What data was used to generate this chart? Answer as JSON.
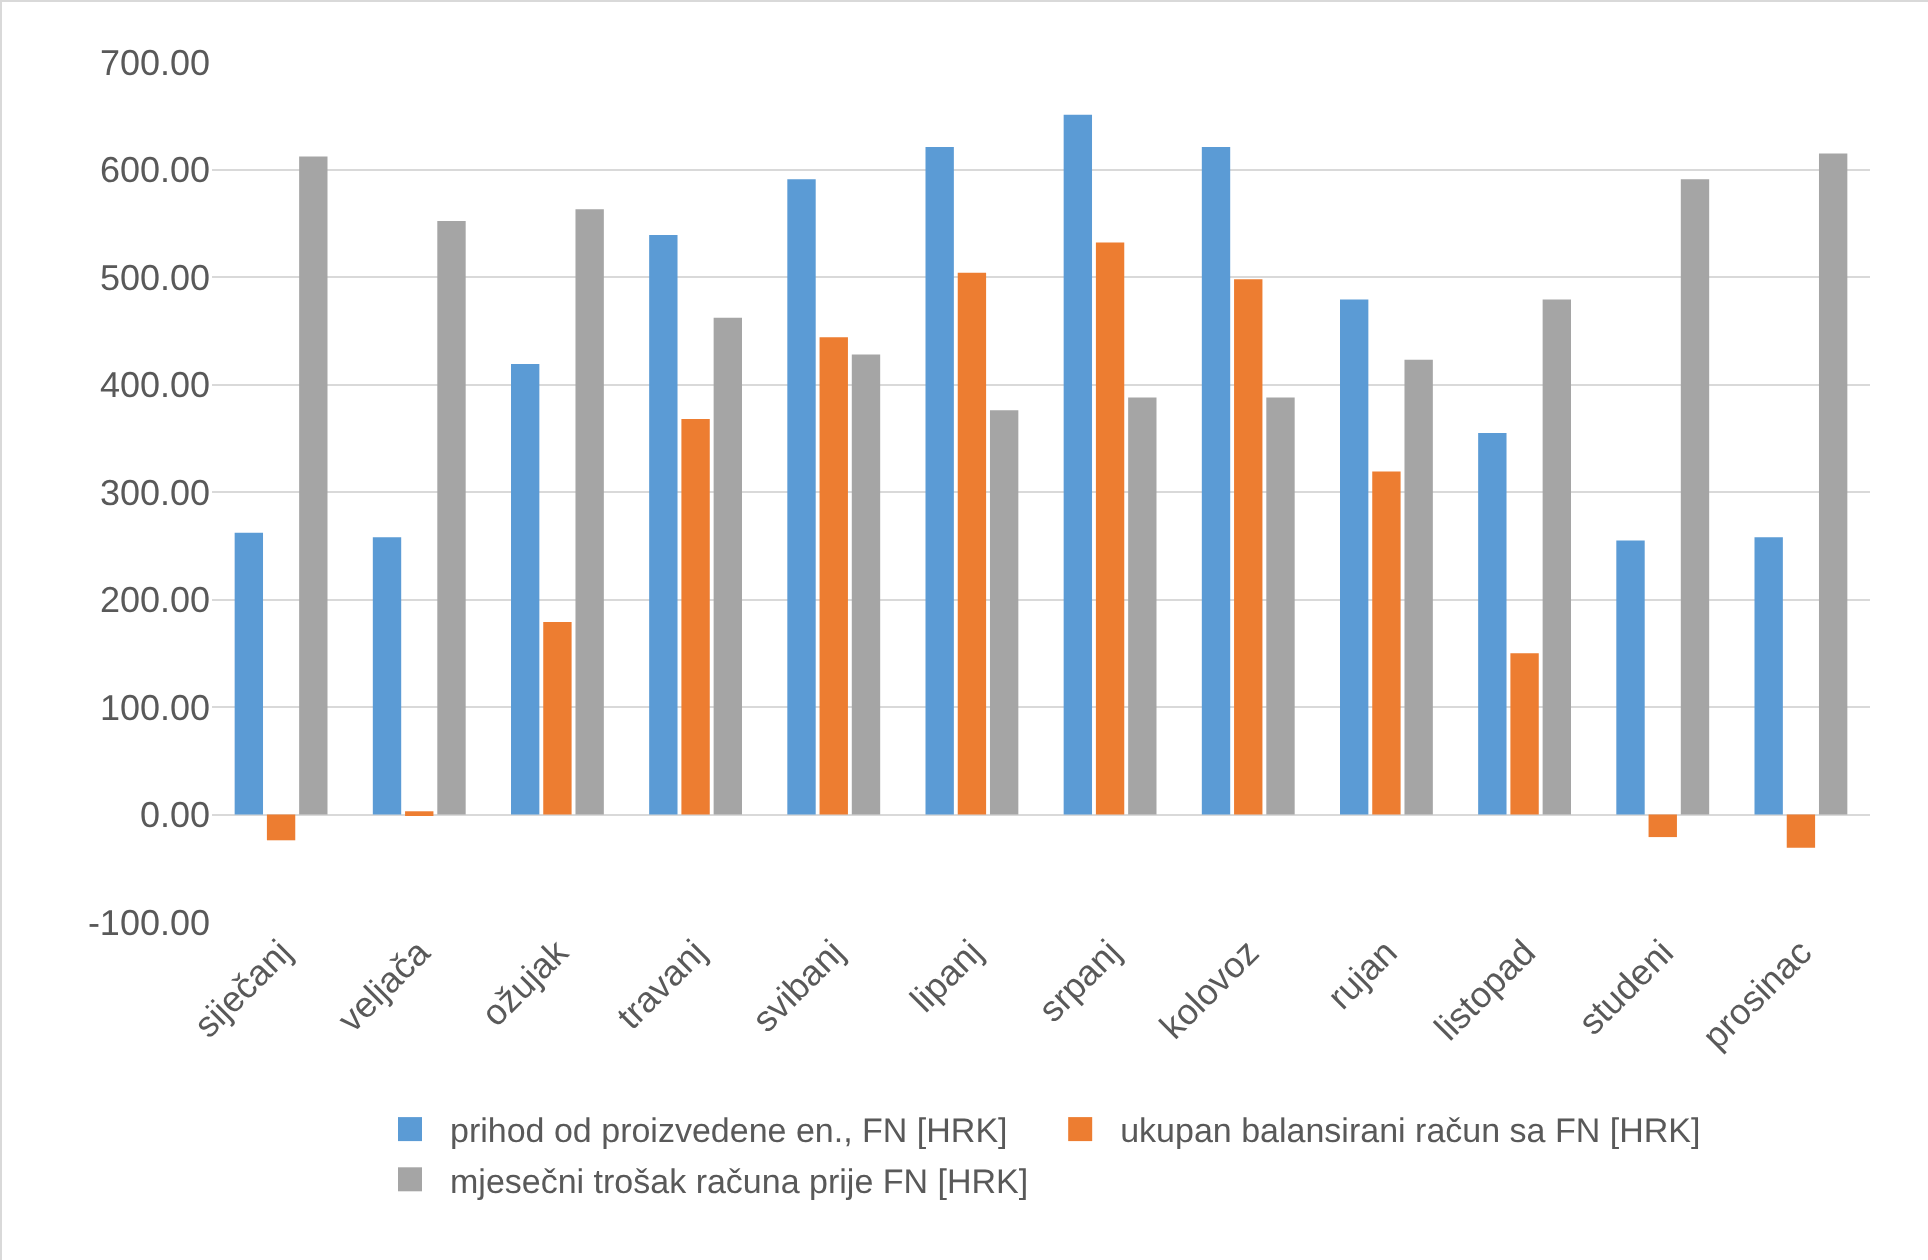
{
  "chart_data": {
    "type": "bar",
    "categories": [
      "siječanj",
      "veljača",
      "ožujak",
      "travanj",
      "svibanj",
      "lipanj",
      "srpanj",
      "kolovoz",
      "rujan",
      "listopad",
      "studeni",
      "prosinac"
    ],
    "series": [
      {
        "name": "prihod od proizvedene en., FN [HRK]",
        "color": "#5b9bd5",
        "values": [
          262,
          258,
          419,
          539,
          591,
          621,
          651,
          621,
          479,
          355,
          255,
          258
        ]
      },
      {
        "name": "ukupan balansirani račun sa FN [HRK]",
        "color": "#ed7d31",
        "values": [
          -24,
          3,
          179,
          368,
          444,
          504,
          532,
          498,
          319,
          150,
          -21,
          -31
        ]
      },
      {
        "name": "mjesečni trošak računa prije FN [HRK]",
        "color": "#a5a5a5",
        "values": [
          612,
          552,
          563,
          462,
          428,
          376,
          388,
          388,
          423,
          479,
          591,
          615
        ]
      }
    ],
    "ylim": [
      -100,
      700
    ],
    "yticks": [
      {
        "value": -100,
        "label": "-100.00"
      },
      {
        "value": 0,
        "label": "0.00"
      },
      {
        "value": 100,
        "label": "100.00"
      },
      {
        "value": 200,
        "label": "200.00"
      },
      {
        "value": 300,
        "label": "300.00"
      },
      {
        "value": 400,
        "label": "400.00"
      },
      {
        "value": 500,
        "label": "500.00"
      },
      {
        "value": 600,
        "label": "600.00"
      },
      {
        "value": 700,
        "label": "700.00"
      }
    ],
    "grid": "y",
    "legend": "bottom"
  }
}
